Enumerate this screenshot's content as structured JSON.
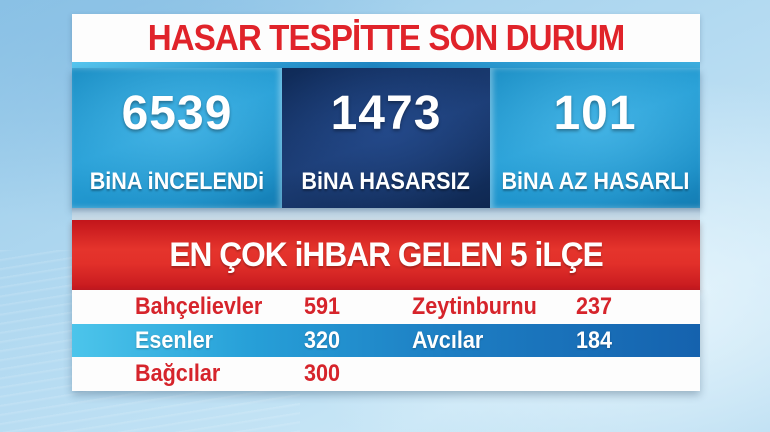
{
  "headline": {
    "title": "HASAR TESPİTTE SON DURUM"
  },
  "stats": [
    {
      "value": "6539",
      "label": "BiNA iNCELENDi"
    },
    {
      "value": "1473",
      "label": "BiNA HASARSIZ"
    },
    {
      "value": "101",
      "label": "BiNA AZ HASARLI"
    }
  ],
  "districts": {
    "title": "EN ÇOK iHBAR GELEN 5 iLÇE",
    "rows": [
      {
        "c1": "Bahçelievler",
        "c2": "591",
        "c3": "Zeytinburnu",
        "c4": "237"
      },
      {
        "c1": "Esenler",
        "c2": "320",
        "c3": "Avcılar",
        "c4": "184"
      },
      {
        "c1": "Bağcılar",
        "c2": "300",
        "c3": "",
        "c4": ""
      }
    ]
  },
  "colors": {
    "headline_red": "#e0232a",
    "banner_red": "#e5342c",
    "panel_light_blue": "#279fd6",
    "panel_navy": "#1c3d75",
    "row_blue_left": "#4cc5eb",
    "row_blue_right": "#1562ae",
    "table_text_red": "#d6242b",
    "sky_background": "#b7dcf2"
  },
  "chart_data": [
    {
      "type": "table",
      "title": "HASAR TESPİTTE SON DURUM",
      "columns": [
        "count",
        "category"
      ],
      "rows": [
        [
          6539,
          "BiNA iNCELENDi"
        ],
        [
          1473,
          "BiNA HASARSIZ"
        ],
        [
          101,
          "BiNA AZ HASARLI"
        ]
      ]
    },
    {
      "type": "table",
      "title": "EN ÇOK iHBAR GELEN 5 iLÇE",
      "columns": [
        "ilçe",
        "ihbar_sayısı"
      ],
      "rows": [
        [
          "Bahçelievler",
          591
        ],
        [
          "Esenler",
          320
        ],
        [
          "Bağcılar",
          300
        ],
        [
          "Zeytinburnu",
          237
        ],
        [
          "Avcılar",
          184
        ]
      ]
    }
  ]
}
